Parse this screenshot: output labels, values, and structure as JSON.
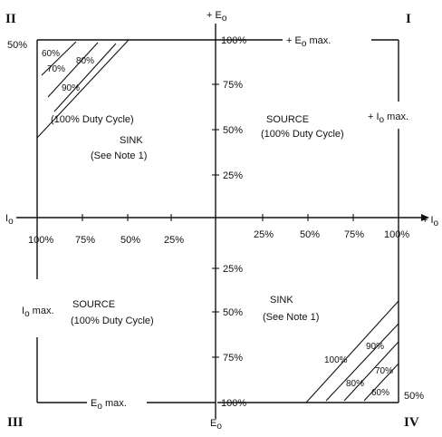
{
  "axes": {
    "y_top": "+ E",
    "y_top_sub": "o",
    "y_bottom": "E",
    "y_bottom_sub": "o",
    "x_left": "I",
    "x_left_sub": "o",
    "x_right": "+ I",
    "x_right_sub": "o"
  },
  "quadrants": {
    "q1": "I",
    "q2": "II",
    "q3": "III",
    "q4": "IV"
  },
  "top_left_50": "50%",
  "bottom_right_50": "50%",
  "voltage_ticks_top": [
    "100%",
    "75%",
    "50%",
    "25%"
  ],
  "voltage_ticks_bottom": [
    "25%",
    "50%",
    "75%",
    "100%"
  ],
  "current_ticks_left": [
    "100%",
    "75%",
    "50%",
    "25%"
  ],
  "current_ticks_right": [
    "25%",
    "50%",
    "75%",
    "100%"
  ],
  "q1_labels": {
    "eo_max_prefix": "+ E",
    "eo_max_sub": "o",
    "eo_max_suffix": " max.",
    "io_max_prefix": "+ I",
    "io_max_sub": "o",
    "io_max_suffix": " max.",
    "source": "SOURCE",
    "duty": "(100% Duty Cycle)"
  },
  "q2_labels": {
    "duty": "(100% Duty Cycle)",
    "sink": "SINK",
    "note": "(See Note 1)",
    "hatch_60": "60%",
    "hatch_70": "70%",
    "hatch_80": "80%",
    "hatch_90": "90%"
  },
  "q3_labels": {
    "io_max_prefix": "I",
    "io_max_sub": "o",
    "io_max_suffix": " max.",
    "source": "SOURCE",
    "duty": "(100% Duty Cycle)",
    "eo_max_prefix": "E",
    "eo_max_sub": "o",
    "eo_max_suffix": " max."
  },
  "q4_labels": {
    "sink": "SINK",
    "note": "(See Note 1)",
    "hatch_100": "100%",
    "hatch_90": "90%",
    "hatch_80": "80%",
    "hatch_70": "70%",
    "hatch_60": "60%"
  }
}
